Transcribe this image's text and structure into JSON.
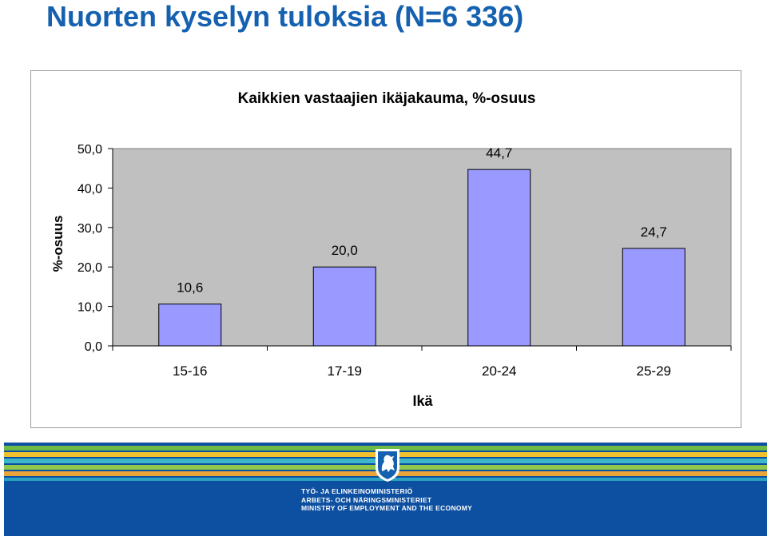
{
  "page": {
    "title": "Nuorten kyselyn tuloksia (N=6 336)"
  },
  "footer": {
    "ministry_fi": "TYÖ- JA ELINKEINOMINISTERIÖ",
    "ministry_sv": "ARBETS- OCH NÄRINGSMINISTERIET",
    "ministry_en": "MINISTRY OF EMPLOYMENT AND THE ECONOMY",
    "logo_icon": "finnish-lion-coat-of-arms-icon"
  },
  "colors": {
    "title": "#1561b0",
    "bar_fill": "#9999ff",
    "plot_background": "#c0c0c0",
    "footer_background": "#0d4fa0"
  },
  "chart_data": {
    "type": "bar",
    "title": "Kaikkien vastaajien ikäjakauma, %-osuus",
    "xlabel": "Ikä",
    "ylabel": "%-osuus",
    "categories": [
      "15-16",
      "17-19",
      "20-24",
      "25-29"
    ],
    "values": [
      10.6,
      20.0,
      44.7,
      24.7
    ],
    "value_labels": [
      "10,6",
      "20,0",
      "44,7",
      "24,7"
    ],
    "ylim": [
      0,
      50
    ],
    "yticks": [
      "0,0",
      "10,0",
      "20,0",
      "30,0",
      "40,0",
      "50,0"
    ],
    "grid": false,
    "legend": "none"
  }
}
